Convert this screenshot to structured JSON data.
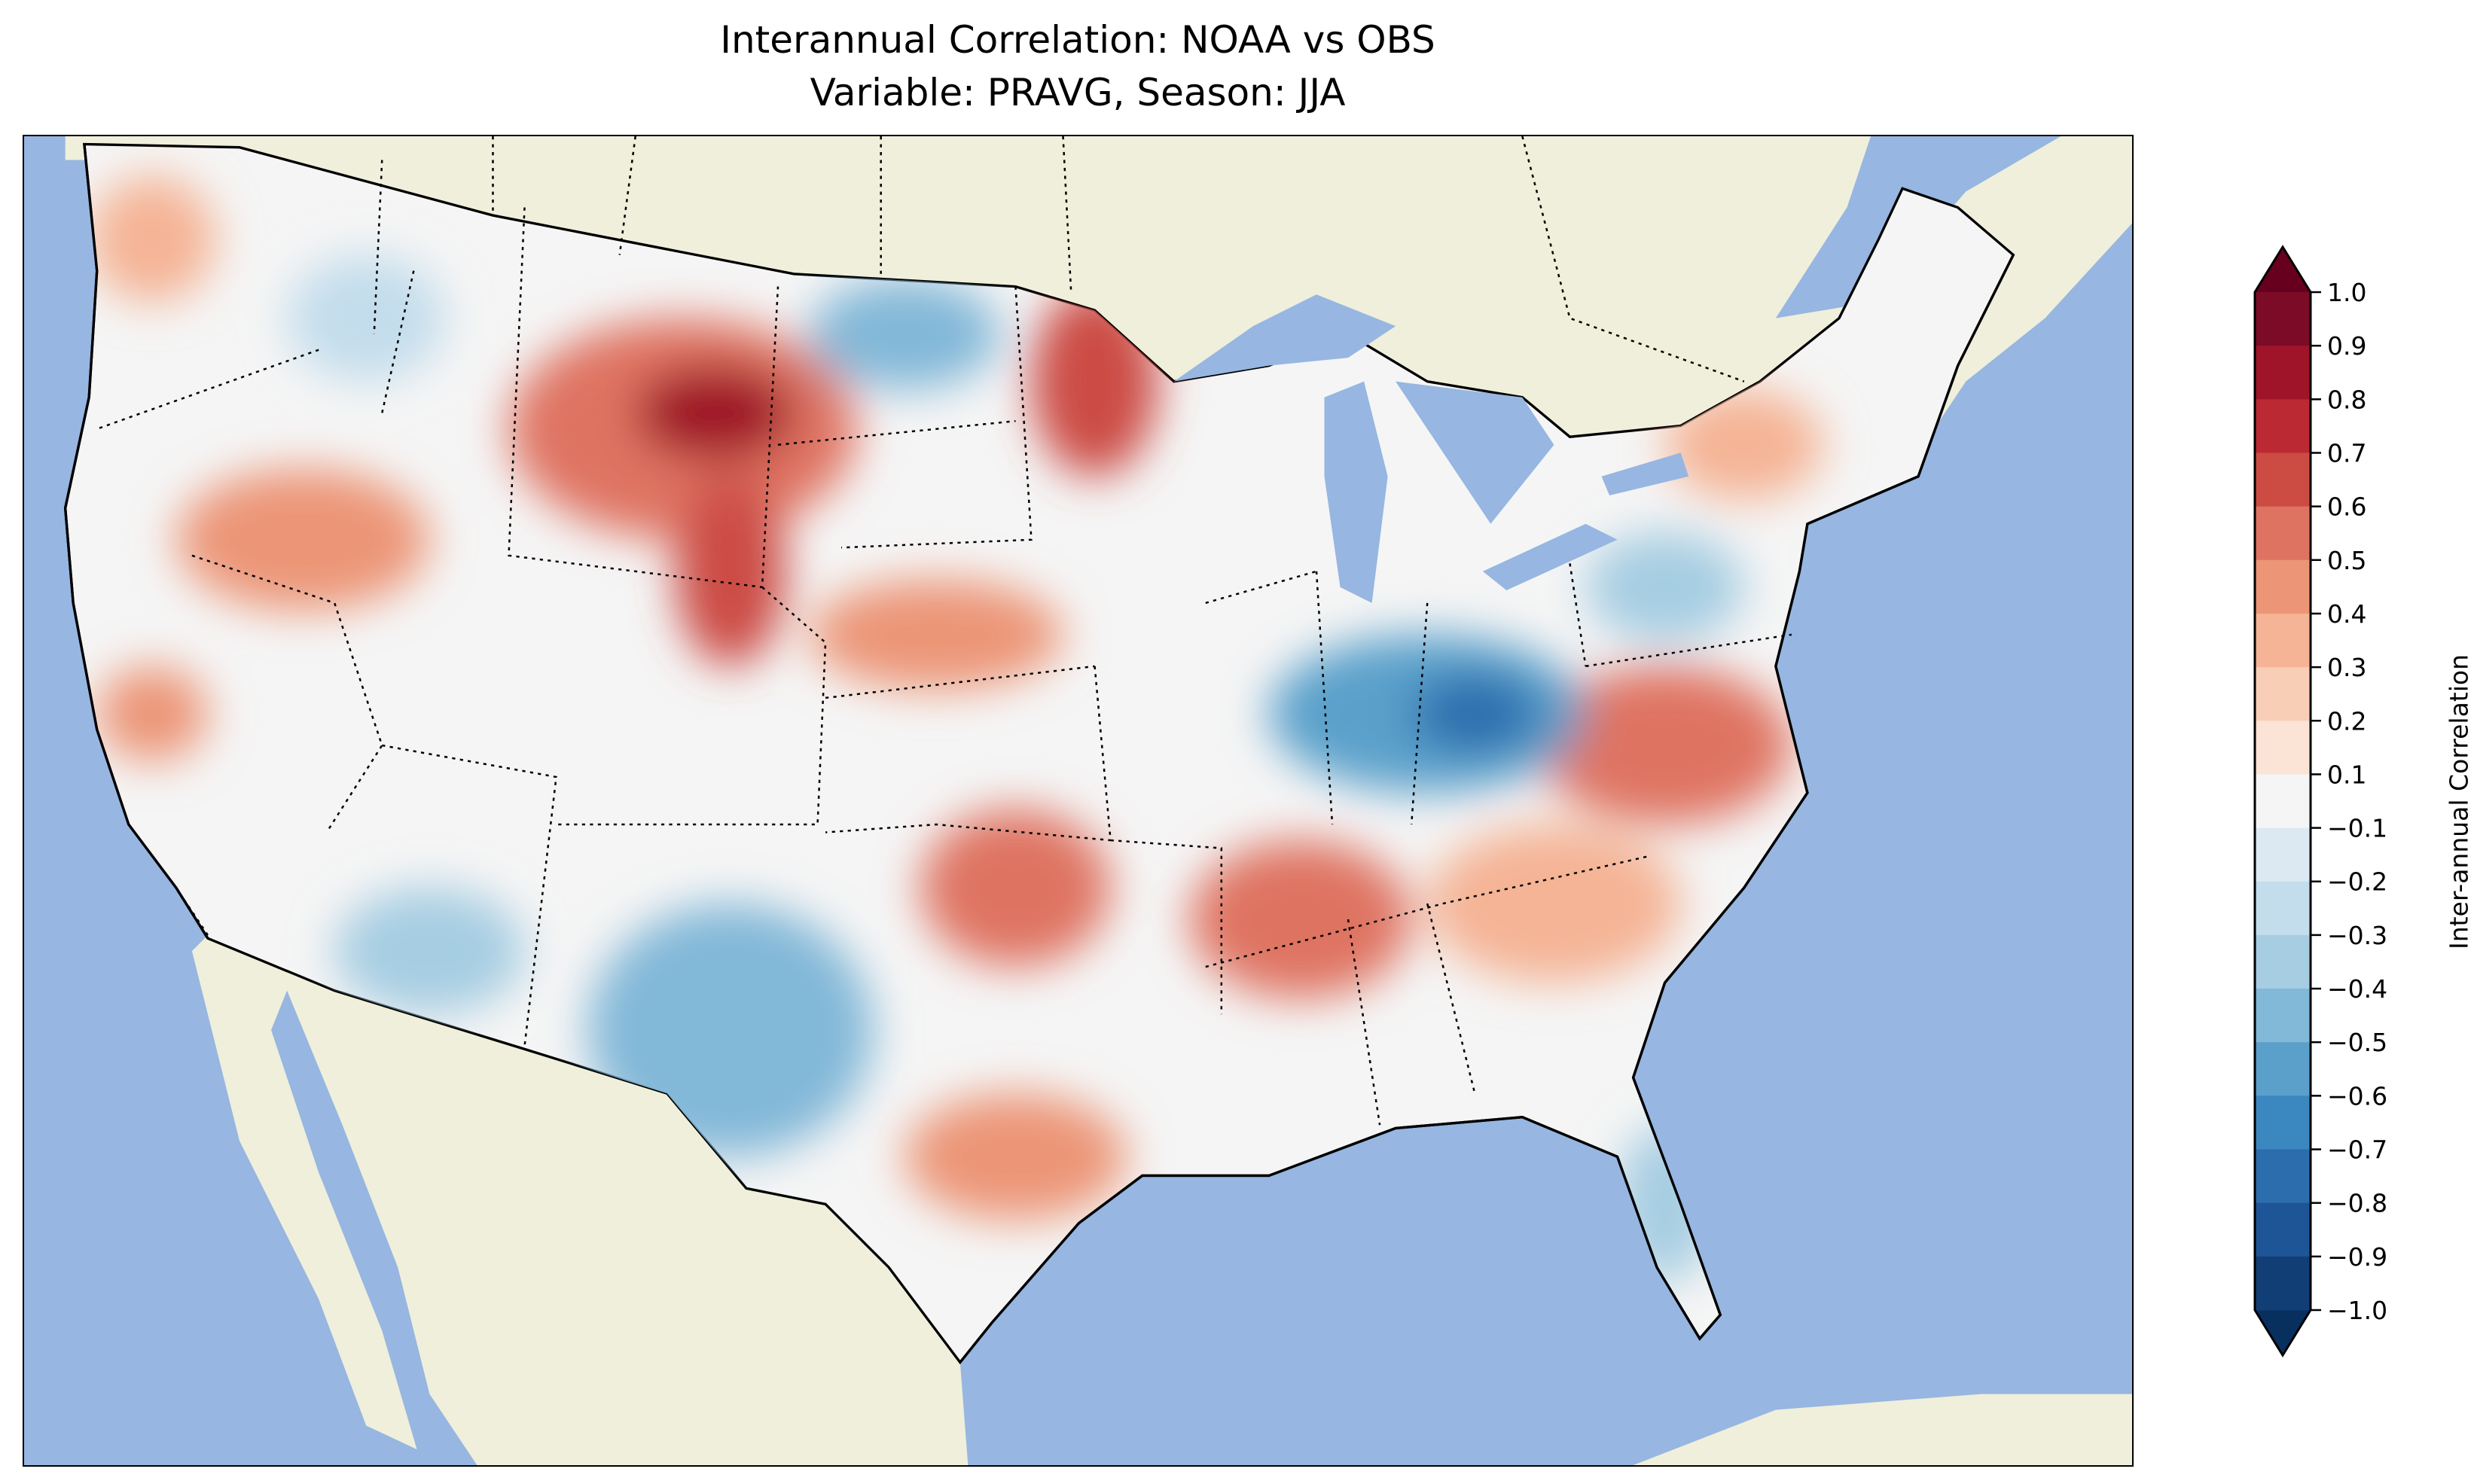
{
  "title": {
    "line1": "Interannual Correlation: NOAA vs OBS",
    "line2": "Variable: PRAVG, Season: JJA"
  },
  "colors": {
    "ocean": "#97b6e1",
    "land": "#efefdb",
    "neutral": "#f5f5f5"
  },
  "chart_data": {
    "type": "heatmap",
    "subtype": "filled contour map",
    "title": "Interannual Correlation: NOAA vs OBS — Variable: PRAVG, Season: JJA",
    "region": "Contiguous United States",
    "colorbar": {
      "label": "Inter-annual Correlation",
      "orientation": "vertical",
      "placement": "right",
      "extend": "both",
      "range": [
        -1.0,
        1.0
      ],
      "tick_labels": [
        "1.0",
        "0.9",
        "0.8",
        "0.7",
        "0.6",
        "0.5",
        "0.4",
        "0.3",
        "0.2",
        "0.1",
        "−0.1",
        "−0.2",
        "−0.3",
        "−0.4",
        "−0.5",
        "−0.6",
        "−0.7",
        "−0.8",
        "−0.9",
        "−1.0"
      ],
      "tick_values": [
        1.0,
        0.9,
        0.8,
        0.7,
        0.6,
        0.5,
        0.4,
        0.3,
        0.2,
        0.1,
        -0.1,
        -0.2,
        -0.3,
        -0.4,
        -0.5,
        -0.6,
        -0.7,
        -0.8,
        -0.9,
        -1.0
      ],
      "band_colors": [
        "#7b0b26",
        "#9f1428",
        "#bb2a33",
        "#cc4c44",
        "#df7362",
        "#ec9577",
        "#f5b495",
        "#f9ceb6",
        "#fbe3d6",
        "#f5f5f5",
        "#dde9f2",
        "#c3ddec",
        "#a6cde2",
        "#82b8d8",
        "#5aa0cb",
        "#3b87bf",
        "#2c6dae",
        "#1d5597",
        "#113e74"
      ],
      "over_color": "#67001f",
      "under_color": "#08305f"
    },
    "notable_regions": [
      {
        "area": "Wyoming / Montana",
        "value_approx": 0.8
      },
      {
        "area": "Minnesota",
        "value_approx": 0.6
      },
      {
        "area": "Nevada / N. California",
        "value_approx": 0.5
      },
      {
        "area": "Oklahoma / Arkansas",
        "value_approx": 0.6
      },
      {
        "area": "Virginia / Carolinas",
        "value_approx": 0.5
      },
      {
        "area": "Ohio Valley / Indiana",
        "value_approx": -0.6
      },
      {
        "area": "New Mexico / West Texas",
        "value_approx": -0.5
      },
      {
        "area": "North Dakota",
        "value_approx": -0.5
      }
    ]
  }
}
